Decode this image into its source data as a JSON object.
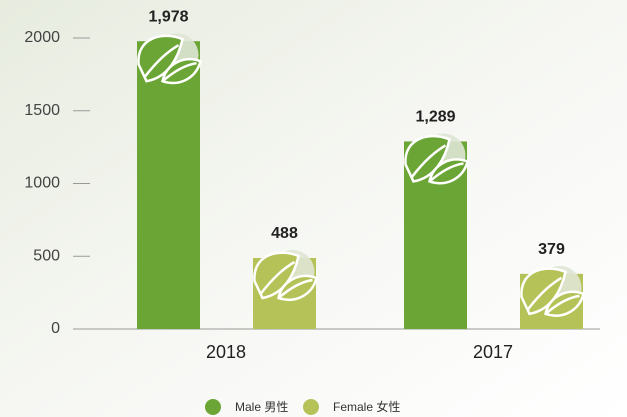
{
  "chart_data": {
    "type": "bar",
    "categories": [
      "2018",
      "2017"
    ],
    "series": [
      {
        "name": "Male 男性",
        "color": "#6aa535",
        "values": [
          1978,
          1289
        ],
        "value_labels": [
          "1,978",
          "1,289"
        ]
      },
      {
        "name": "Female 女性",
        "color": "#b5c257",
        "values": [
          488,
          379
        ]
      }
    ],
    "ylim": [
      0,
      2000
    ],
    "yticks": [
      0,
      500,
      1000,
      1500,
      2000
    ]
  }
}
